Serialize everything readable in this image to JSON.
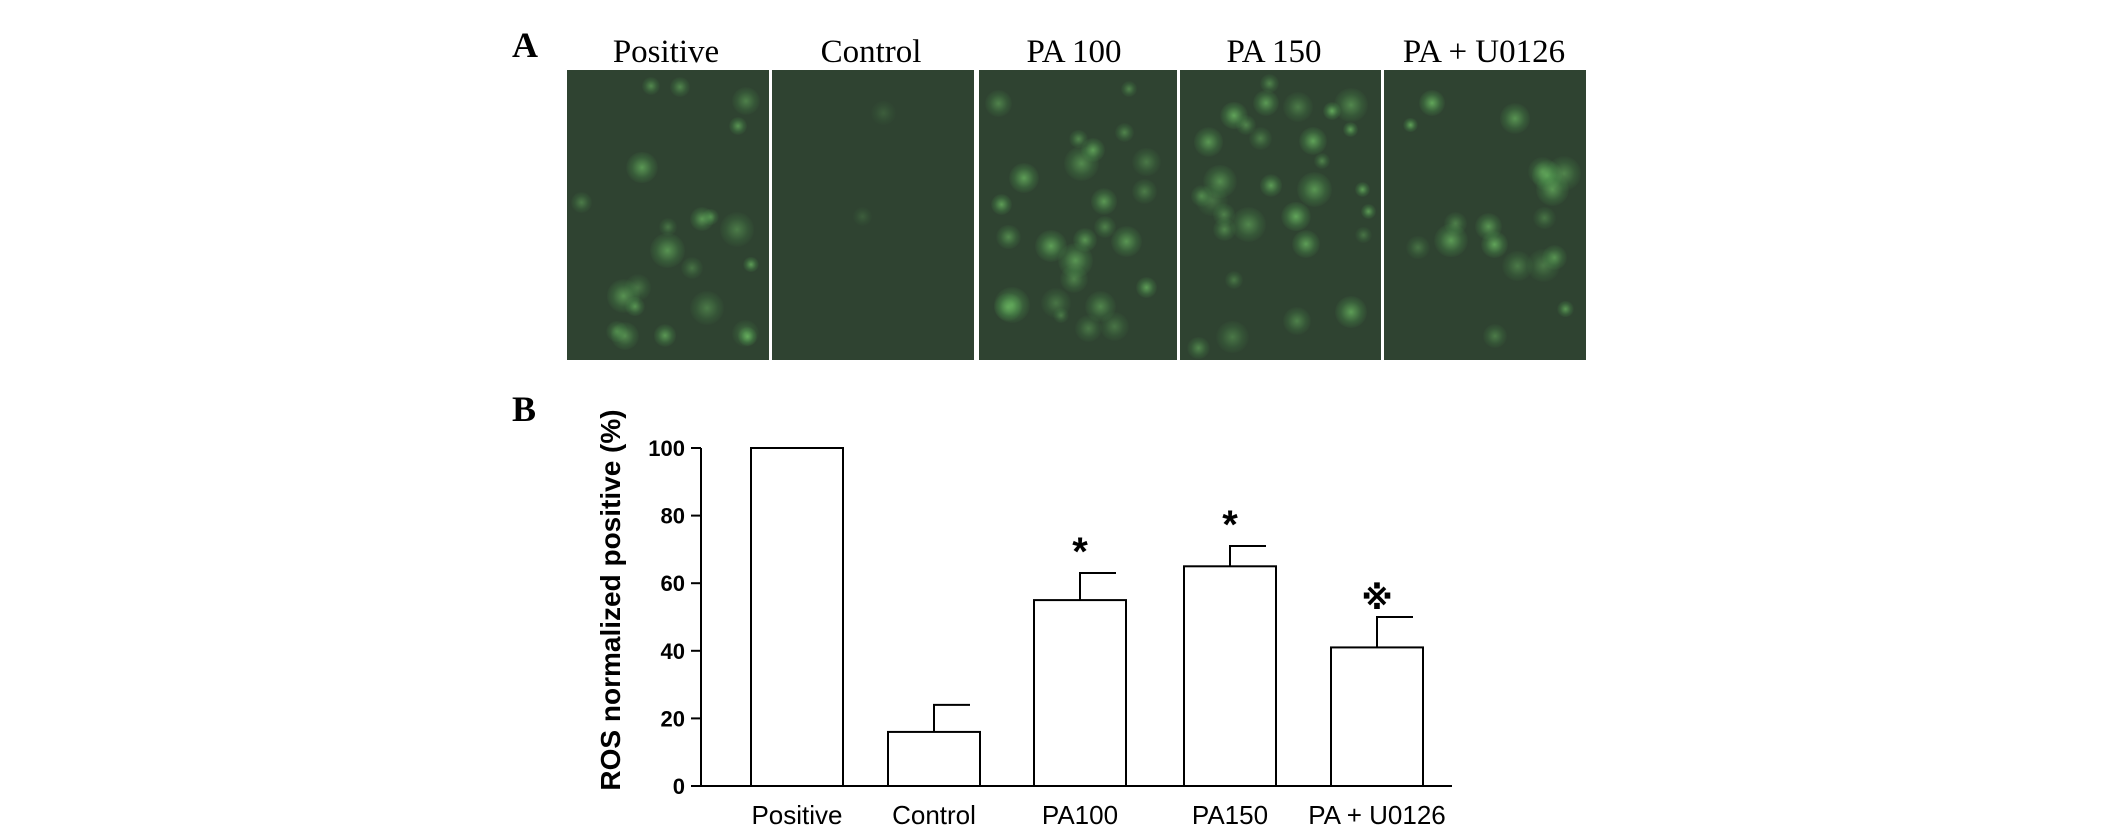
{
  "panel_a": {
    "letter": "A",
    "images": [
      {
        "label": "Positive"
      },
      {
        "label": "Control"
      },
      {
        "label": "PA 100"
      },
      {
        "label": "PA 150"
      },
      {
        "label": "PA + U0126"
      }
    ],
    "colors": {
      "fluorescence_background": "#2f4331",
      "fluorescence_signal": "#6ebe64"
    }
  },
  "panel_b": {
    "letter": "B"
  },
  "chart_data": {
    "type": "bar",
    "categories": [
      "Positive",
      "Control",
      "PA100",
      "PA150",
      "PA + U0126"
    ],
    "values": [
      100,
      16,
      55,
      65,
      41
    ],
    "errors": [
      0,
      8,
      8,
      6,
      9
    ],
    "annotations": [
      "",
      "",
      "*",
      "*",
      "※"
    ],
    "ylabel": "ROS normalized positive (%)",
    "xlabel": "",
    "ylim": [
      0,
      100
    ],
    "yticks": [
      0,
      20,
      40,
      60,
      80,
      100
    ],
    "grid": false,
    "colors": {
      "bar_fill": "#ffffff",
      "bar_stroke": "#000000"
    }
  }
}
